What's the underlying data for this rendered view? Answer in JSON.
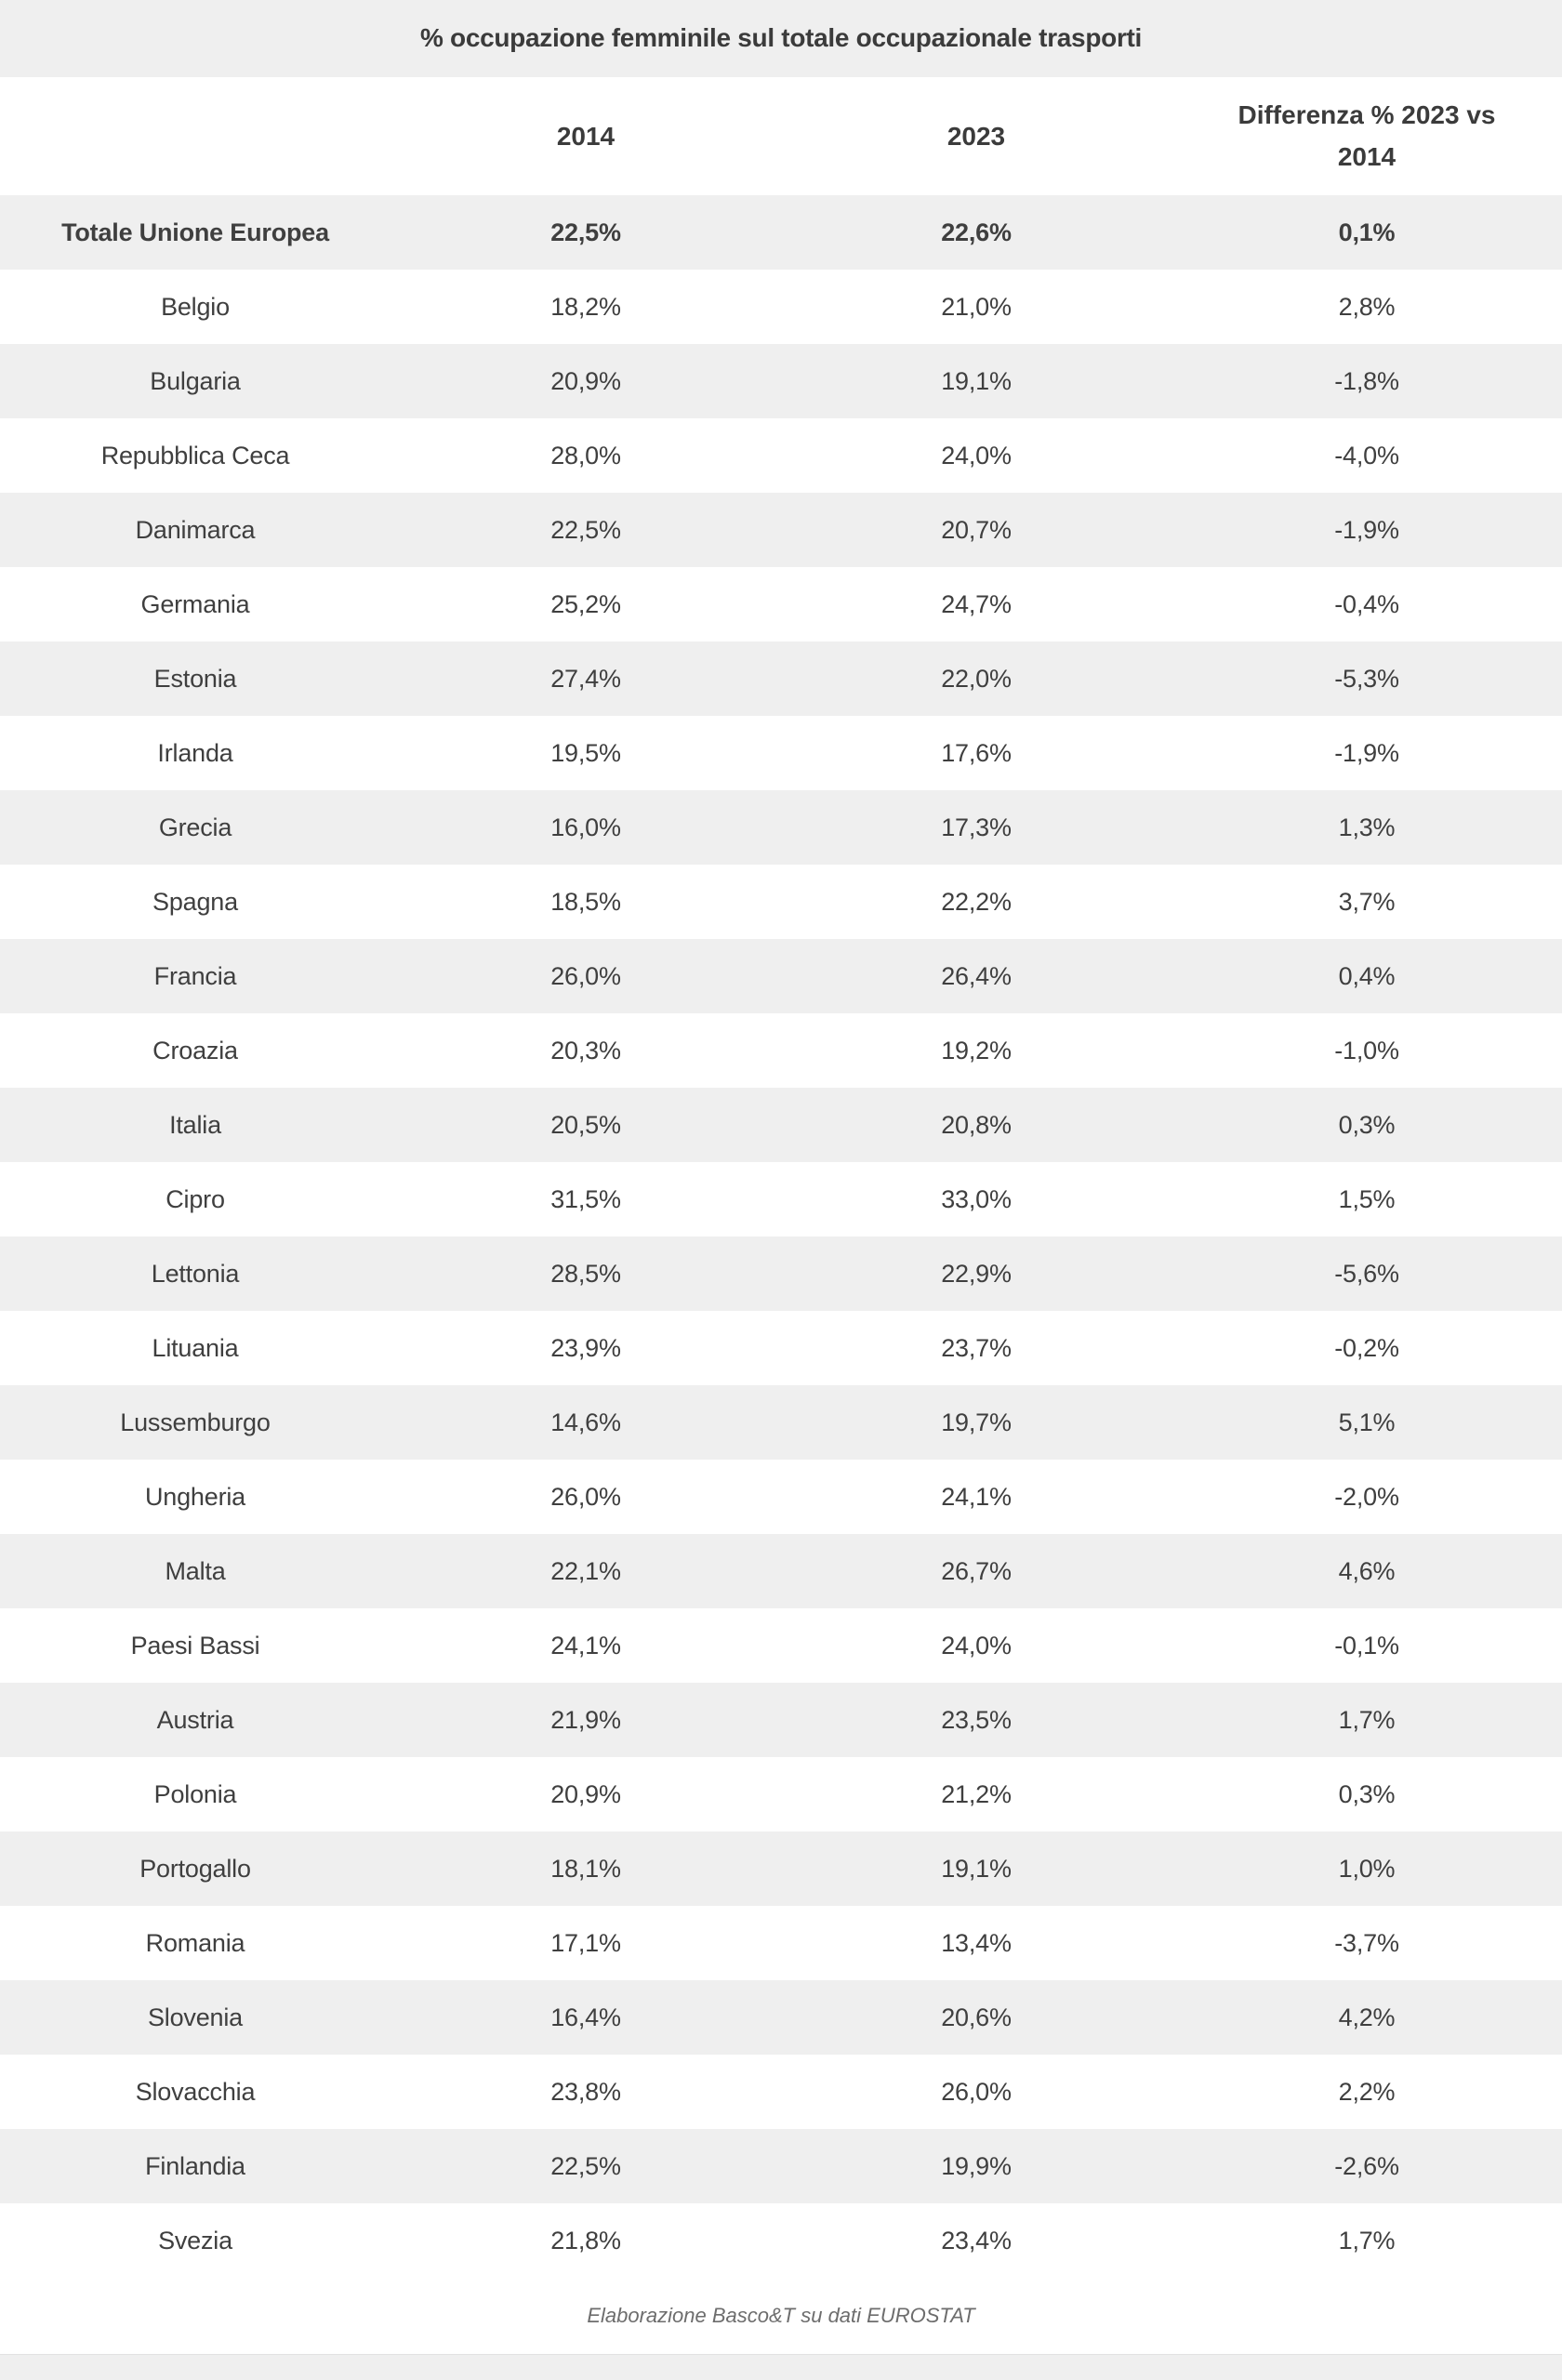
{
  "colors": {
    "stripe_background": "#efefef",
    "row_background": "#ffffff",
    "text": "#3b3b3b",
    "note_text": "#6d6d6d"
  },
  "chart_data": {
    "type": "table",
    "title": "% occupazione femminile sul totale occupazionale trasporti",
    "columns": [
      "",
      "2014",
      "2023",
      "Differenza % 2023 vs 2014"
    ],
    "rows": [
      [
        "Totale Unione Europea",
        "22,5%",
        "22,6%",
        "0,1%"
      ],
      [
        "Belgio",
        "18,2%",
        "21,0%",
        "2,8%"
      ],
      [
        "Bulgaria",
        "20,9%",
        "19,1%",
        "-1,8%"
      ],
      [
        "Repubblica Ceca",
        "28,0%",
        "24,0%",
        "-4,0%"
      ],
      [
        "Danimarca",
        "22,5%",
        "20,7%",
        "-1,9%"
      ],
      [
        "Germania",
        "25,2%",
        "24,7%",
        "-0,4%"
      ],
      [
        "Estonia",
        "27,4%",
        "22,0%",
        "-5,3%"
      ],
      [
        "Irlanda",
        "19,5%",
        "17,6%",
        "-1,9%"
      ],
      [
        "Grecia",
        "16,0%",
        "17,3%",
        "1,3%"
      ],
      [
        "Spagna",
        "18,5%",
        "22,2%",
        "3,7%"
      ],
      [
        "Francia",
        "26,0%",
        "26,4%",
        "0,4%"
      ],
      [
        "Croazia",
        "20,3%",
        "19,2%",
        "-1,0%"
      ],
      [
        "Italia",
        "20,5%",
        "20,8%",
        "0,3%"
      ],
      [
        "Cipro",
        "31,5%",
        "33,0%",
        "1,5%"
      ],
      [
        "Lettonia",
        "28,5%",
        "22,9%",
        "-5,6%"
      ],
      [
        "Lituania",
        "23,9%",
        "23,7%",
        "-0,2%"
      ],
      [
        "Lussemburgo",
        "14,6%",
        "19,7%",
        "5,1%"
      ],
      [
        "Ungheria",
        "26,0%",
        "24,1%",
        "-2,0%"
      ],
      [
        "Malta",
        "22,1%",
        "26,7%",
        "4,6%"
      ],
      [
        "Paesi Bassi",
        "24,1%",
        "24,0%",
        "-0,1%"
      ],
      [
        "Austria",
        "21,9%",
        "23,5%",
        "1,7%"
      ],
      [
        "Polonia",
        "20,9%",
        "21,2%",
        "0,3%"
      ],
      [
        "Portogallo",
        "18,1%",
        "19,1%",
        "1,0%"
      ],
      [
        "Romania",
        "17,1%",
        "13,4%",
        "-3,7%"
      ],
      [
        "Slovenia",
        "16,4%",
        "20,6%",
        "4,2%"
      ],
      [
        "Slovacchia",
        "23,8%",
        "26,0%",
        "2,2%"
      ],
      [
        "Finlandia",
        "22,5%",
        "19,9%",
        "-2,6%"
      ],
      [
        "Svezia",
        "21,8%",
        "23,4%",
        "1,7%"
      ]
    ],
    "source": "Elaborazione Basco&T su dati EUROSTAT",
    "layout": {
      "striped": true,
      "first_row_bold": true,
      "column_alignment": "center"
    }
  }
}
